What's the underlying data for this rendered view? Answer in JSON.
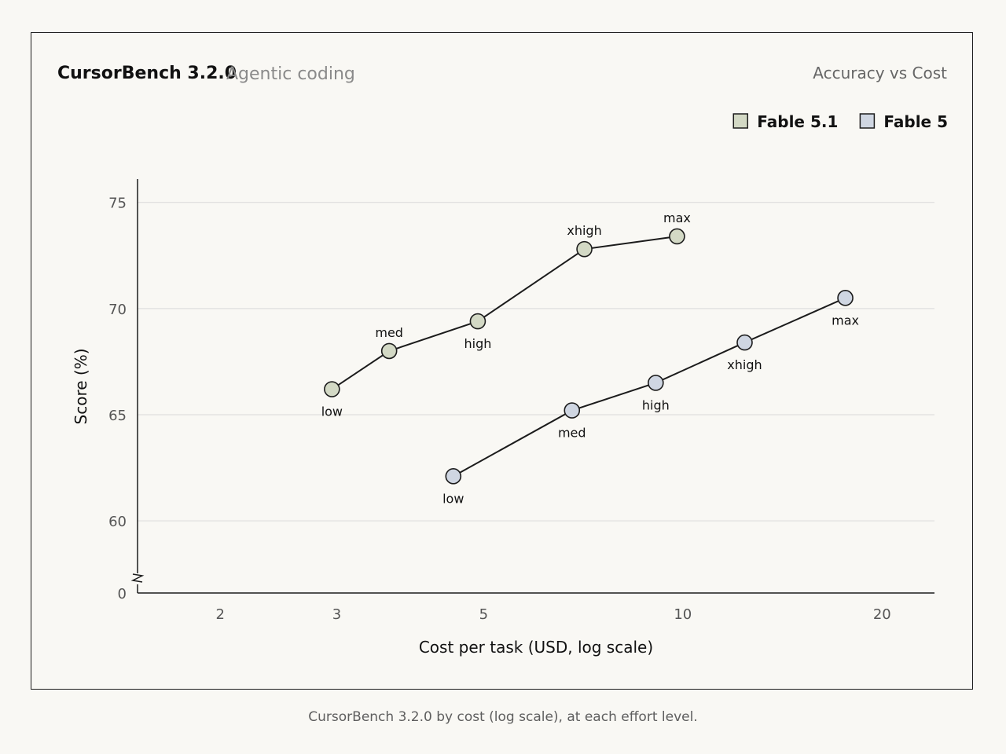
{
  "header": {
    "title": "CursorBench 3.2.0",
    "subtitle": "Agentic coding",
    "right_label": "Accuracy vs Cost"
  },
  "caption": "CursorBench 3.2.0 by cost (log scale), at each effort level.",
  "colors": {
    "fable_5_1": "#d3d9c5",
    "fable_5": "#cfd6e2",
    "line": "#1c1c1c",
    "grid": "#d9d9d9",
    "axis_text": "#555555"
  },
  "chart_data": {
    "type": "line",
    "title": "CursorBench 3.2.0",
    "subtitle": "Agentic coding",
    "xlabel": "Cost per task (USD, log scale)",
    "ylabel": "Score (%)",
    "x_scale": "log",
    "xlim": [
      1.5,
      24
    ],
    "ylim": [
      56.6,
      76.1
    ],
    "x_ticks": [
      2,
      3,
      5,
      10,
      20
    ],
    "y_ticks": [
      60,
      65,
      70,
      75
    ],
    "y_axis_break": true,
    "y_break_label": "0",
    "grid": "horizontal",
    "legend_position": "top-right",
    "series": [
      {
        "name": "Fable 5.1",
        "color_key": "fable_5_1",
        "points": [
          {
            "label": "low",
            "x": 2.95,
            "y": 66.2,
            "label_pos": "below"
          },
          {
            "label": "med",
            "x": 3.6,
            "y": 68.0,
            "label_pos": "above"
          },
          {
            "label": "high",
            "x": 4.9,
            "y": 69.4,
            "label_pos": "below"
          },
          {
            "label": "xhigh",
            "x": 7.1,
            "y": 72.8,
            "label_pos": "above"
          },
          {
            "label": "max",
            "x": 9.8,
            "y": 73.4,
            "label_pos": "above"
          }
        ]
      },
      {
        "name": "Fable 5",
        "color_key": "fable_5",
        "points": [
          {
            "label": "low",
            "x": 4.5,
            "y": 62.1,
            "label_pos": "below"
          },
          {
            "label": "med",
            "x": 6.8,
            "y": 65.2,
            "label_pos": "below"
          },
          {
            "label": "high",
            "x": 9.1,
            "y": 66.5,
            "label_pos": "below"
          },
          {
            "label": "xhigh",
            "x": 12.4,
            "y": 68.4,
            "label_pos": "below"
          },
          {
            "label": "max",
            "x": 17.6,
            "y": 70.5,
            "label_pos": "below"
          }
        ]
      }
    ]
  }
}
